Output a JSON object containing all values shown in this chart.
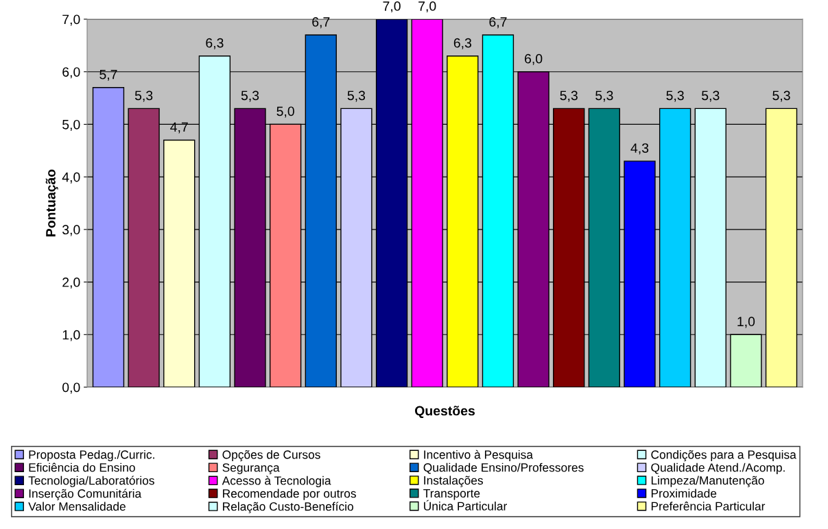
{
  "chart_data": {
    "type": "bar",
    "xlabel": "Questões",
    "ylabel": "Pontuação",
    "categories": [
      null
    ],
    "ylim": [
      0,
      7
    ],
    "yticks": [
      {
        "value": 0,
        "label": "0,0"
      },
      {
        "value": 1,
        "label": "1,0"
      },
      {
        "value": 2,
        "label": "2,0"
      },
      {
        "value": 3,
        "label": "3,0"
      },
      {
        "value": 4,
        "label": "4,0"
      },
      {
        "value": 5,
        "label": "5,0"
      },
      {
        "value": 6,
        "label": "6,0"
      },
      {
        "value": 7,
        "label": "7,0"
      }
    ],
    "grid": "y",
    "legend": "bottom",
    "series": [
      {
        "name": "Proposta Pedag./Curric.",
        "color": "#9999ff",
        "values": [
          5.7
        ],
        "value_labels": [
          "5,7"
        ]
      },
      {
        "name": "Opções de Cursos",
        "color": "#993366",
        "values": [
          5.3
        ],
        "value_labels": [
          "5,3"
        ]
      },
      {
        "name": "Incentivo à Pesquisa",
        "color": "#ffffcc",
        "values": [
          4.7
        ],
        "value_labels": [
          "4,7"
        ]
      },
      {
        "name": "Condições para a Pesquisa",
        "color": "#ccffff",
        "values": [
          6.3
        ],
        "value_labels": [
          "6,3"
        ]
      },
      {
        "name": "Eficiência do Ensino",
        "color": "#660066",
        "values": [
          5.3
        ],
        "value_labels": [
          "5,3"
        ]
      },
      {
        "name": "Segurança",
        "color": "#ff8080",
        "values": [
          5.0
        ],
        "value_labels": [
          "5,0"
        ]
      },
      {
        "name": "Qualidade Ensino/Professores",
        "color": "#0066cc",
        "values": [
          6.7
        ],
        "value_labels": [
          "6,7"
        ]
      },
      {
        "name": "Qualidade Atend./Acomp.",
        "color": "#ccccff",
        "values": [
          5.3
        ],
        "value_labels": [
          "5,3"
        ]
      },
      {
        "name": "Tecnologia/Laboratórios",
        "color": "#000080",
        "values": [
          7.0
        ],
        "value_labels": [
          "7,0"
        ]
      },
      {
        "name": "Acesso à Tecnologia",
        "color": "#ff00ff",
        "values": [
          7.0
        ],
        "value_labels": [
          "7,0"
        ]
      },
      {
        "name": "Instalações",
        "color": "#ffff00",
        "values": [
          6.3
        ],
        "value_labels": [
          "6,3"
        ]
      },
      {
        "name": "Limpeza/Manutenção",
        "color": "#00ffff",
        "values": [
          6.7
        ],
        "value_labels": [
          "6,7"
        ]
      },
      {
        "name": "Inserção Comunitária",
        "color": "#800080",
        "values": [
          6.0
        ],
        "value_labels": [
          "6,0"
        ]
      },
      {
        "name": "Recomendade por outros",
        "color": "#800000",
        "values": [
          5.3
        ],
        "value_labels": [
          "5,3"
        ]
      },
      {
        "name": "Transporte",
        "color": "#008080",
        "values": [
          5.3
        ],
        "value_labels": [
          "5,3"
        ]
      },
      {
        "name": "Proximidade",
        "color": "#0000ff",
        "values": [
          4.3
        ],
        "value_labels": [
          "4,3"
        ]
      },
      {
        "name": "Valor Mensalidade",
        "color": "#00ccff",
        "values": [
          5.3
        ],
        "value_labels": [
          "5,3"
        ]
      },
      {
        "name": "Relação Custo-Benefício",
        "color": "#ccffff",
        "values": [
          5.3
        ],
        "value_labels": [
          "5,3"
        ]
      },
      {
        "name": "Única Particular",
        "color": "#ccffcc",
        "values": [
          1.0
        ],
        "value_labels": [
          "1,0"
        ]
      },
      {
        "name": "Preferência Particular",
        "color": "#ffff99",
        "values": [
          5.3
        ],
        "value_labels": [
          "5,3"
        ]
      }
    ]
  }
}
